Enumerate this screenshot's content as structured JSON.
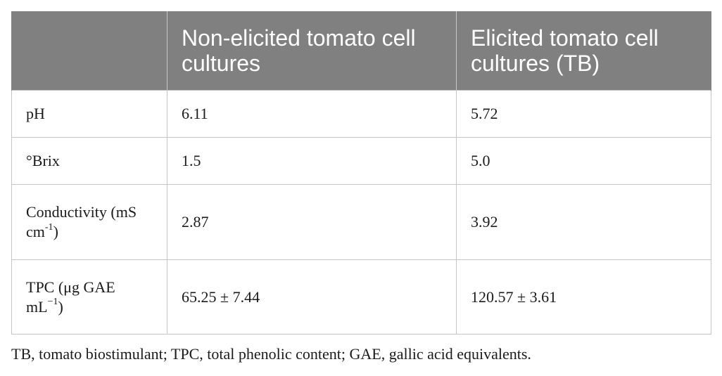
{
  "table": {
    "headers": [
      "",
      "Non-elicited tomato cell cultures",
      "Elicited tomato cell cultures (TB)"
    ],
    "rows": [
      {
        "label": "pH",
        "label_sup": "",
        "label_tail": "",
        "non_elicited": "6.11",
        "elicited": "5.72"
      },
      {
        "label": "°Brix",
        "label_sup": "",
        "label_tail": "",
        "non_elicited": "1.5",
        "elicited": "5.0"
      },
      {
        "label": "Conductivity (mS cm",
        "label_sup": "-1",
        "label_tail": ")",
        "non_elicited": "2.87",
        "elicited": "3.92"
      },
      {
        "label": "TPC (μg GAE mL",
        "label_sup": "−1",
        "label_tail": ")",
        "non_elicited": "65.25 ± 7.44",
        "elicited": "120.57 ± 3.61"
      }
    ]
  },
  "footnote": "TB, tomato biostimulant; TPC, total phenolic content; GAE, gallic acid equivalents."
}
